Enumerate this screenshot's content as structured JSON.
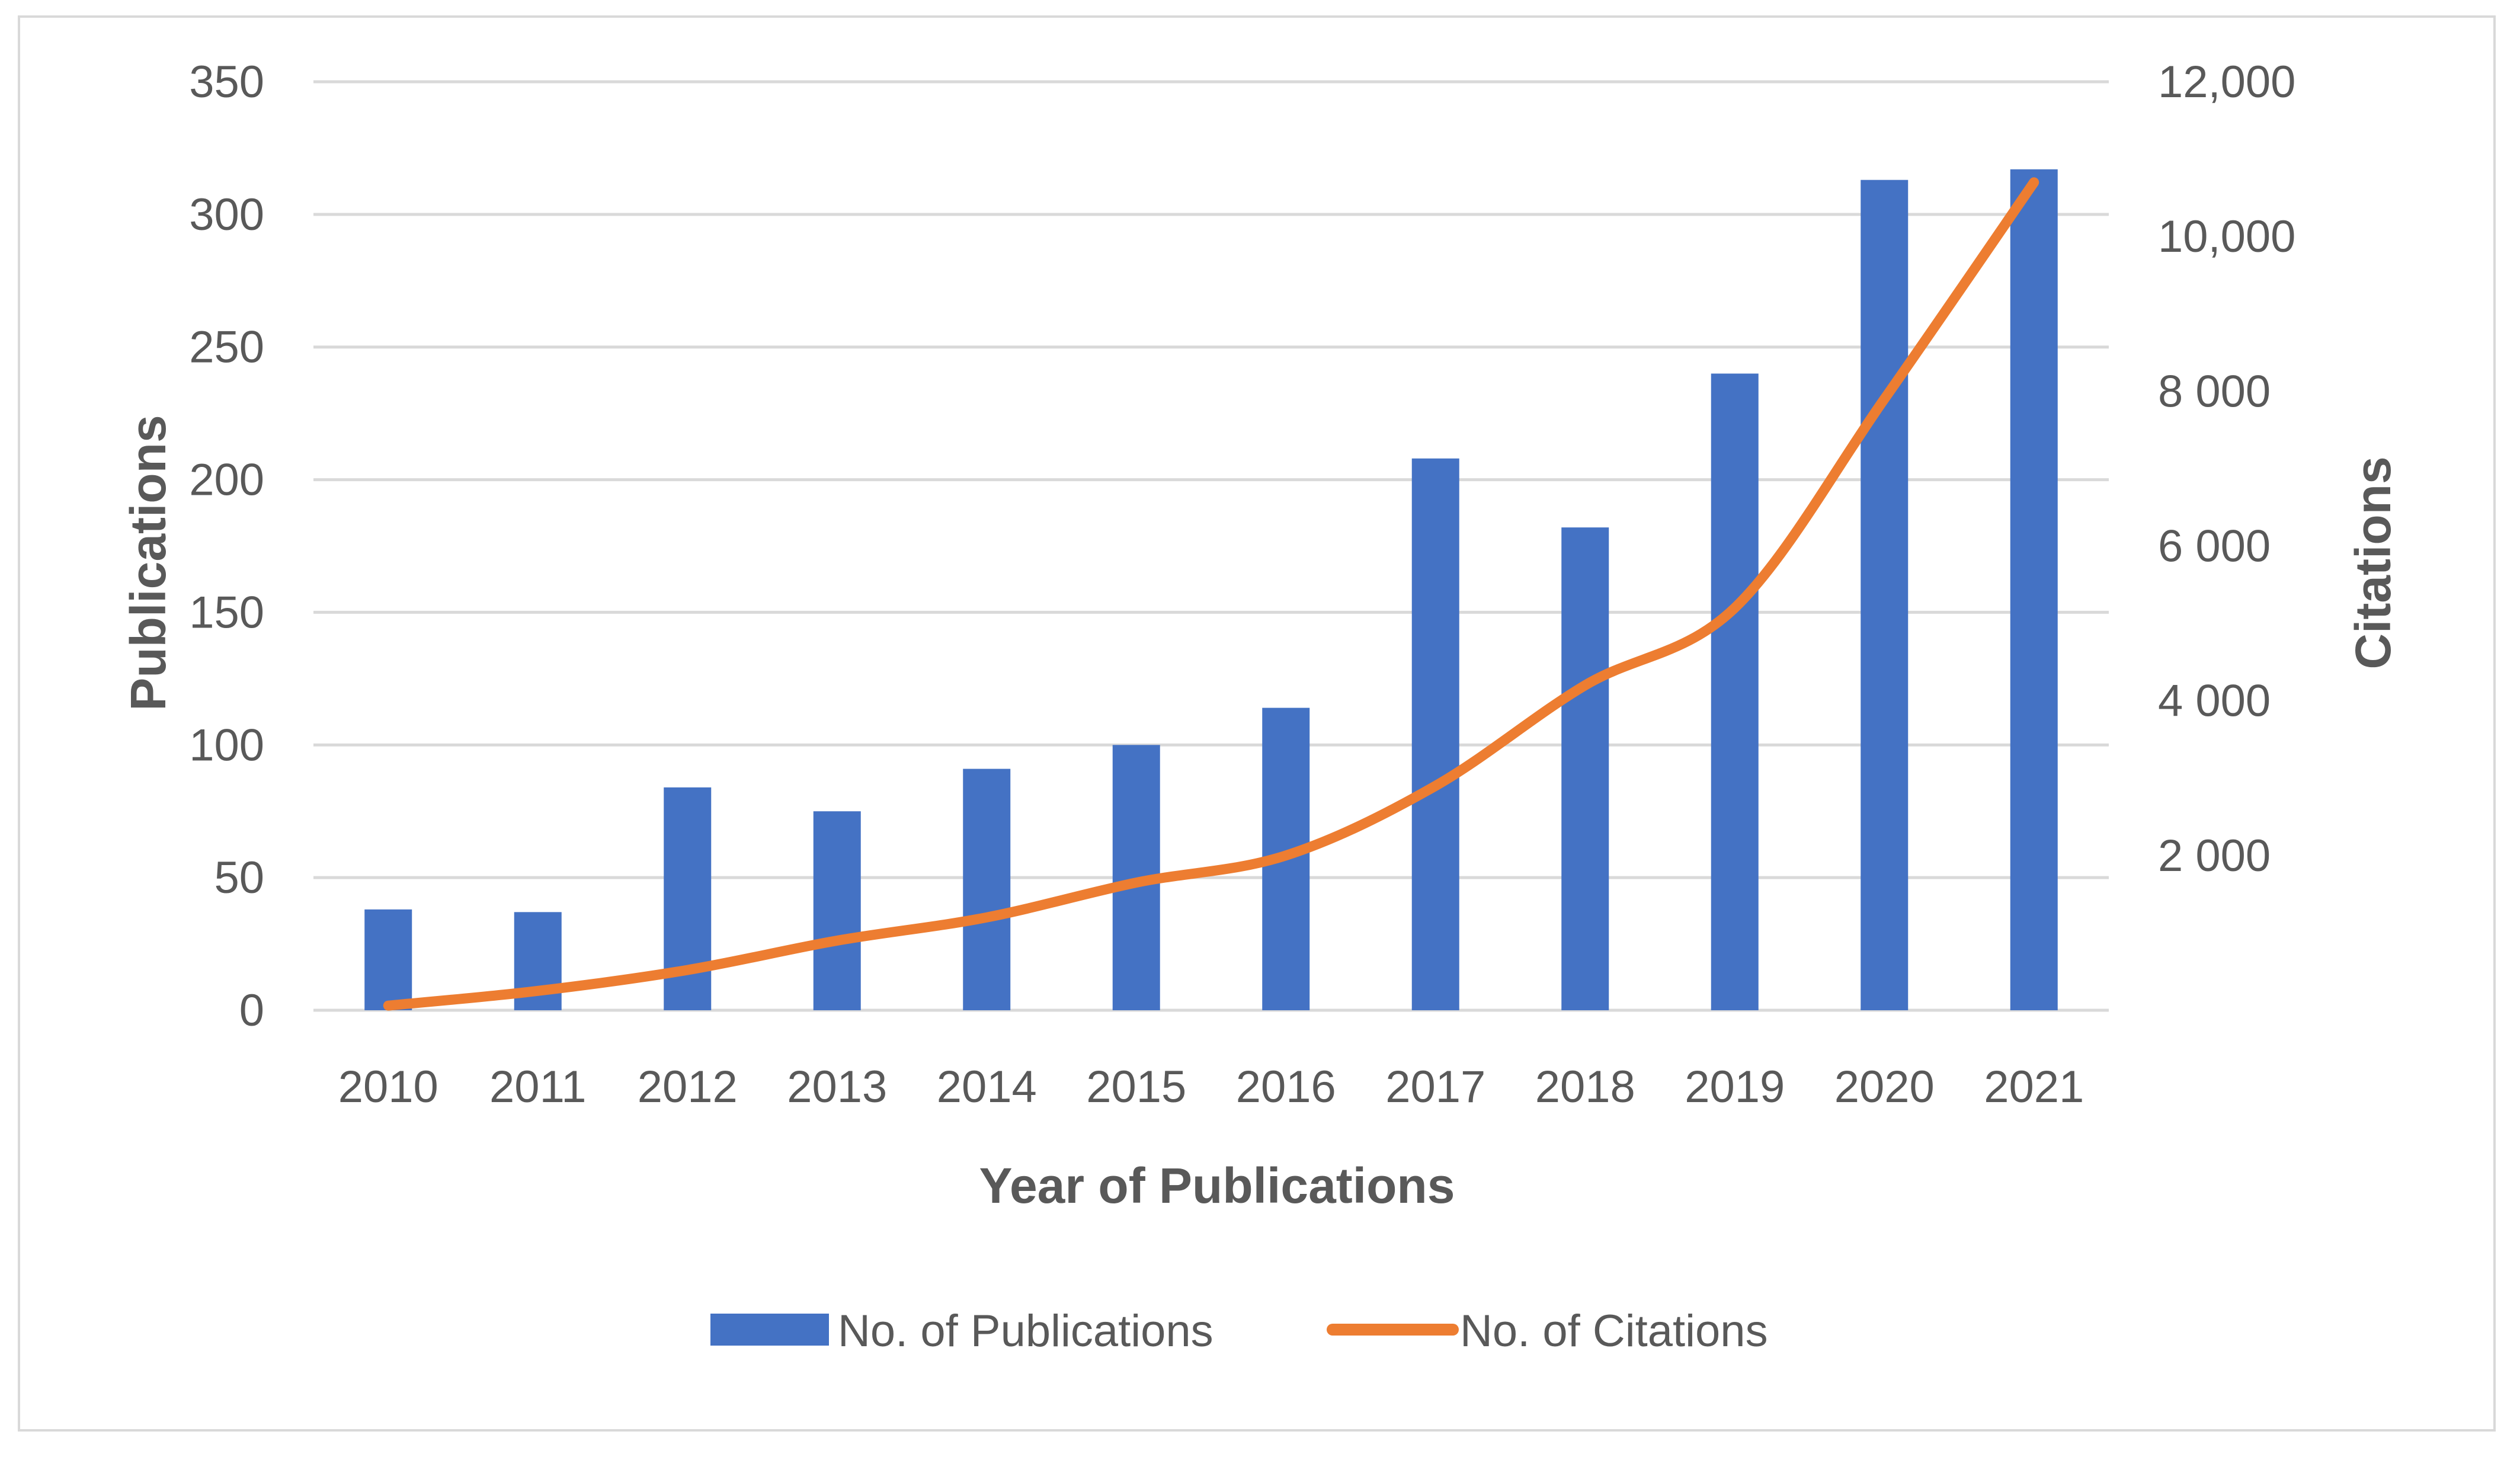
{
  "chart_data": {
    "type": "bar+line",
    "title": "",
    "xlabel": "Year of Publications",
    "ylabel": "Publications",
    "y2label": "Citations",
    "categories": [
      "2010",
      "2011",
      "2012",
      "2013",
      "2014",
      "2015",
      "2016",
      "2017",
      "2018",
      "2019",
      "2020",
      "2021"
    ],
    "ylim": [
      0,
      350
    ],
    "y2lim": [
      0,
      12000
    ],
    "y_ticks": [
      "0",
      "50",
      "100",
      "150",
      "200",
      "250",
      "300",
      "350"
    ],
    "y_tick_values": [
      0,
      50,
      100,
      150,
      200,
      250,
      300,
      350
    ],
    "y2_ticks": [
      "2 000",
      "4 000",
      "6 000",
      "8 000",
      "10,000",
      "12,000"
    ],
    "y2_tick_values": [
      2000,
      4000,
      6000,
      8000,
      10000,
      12000
    ],
    "grid": true,
    "legend_position": "bottom",
    "series": [
      {
        "name": "No. of Publications",
        "kind": "bar",
        "axis": "left",
        "color": "#4472c4",
        "values": [
          38,
          37,
          84,
          75,
          91,
          100,
          114,
          208,
          182,
          240,
          313,
          317
        ]
      },
      {
        "name": "No. of Citations",
        "kind": "line",
        "axis": "right",
        "color": "#ed7d31",
        "values": [
          60,
          250,
          520,
          900,
          1200,
          1650,
          2000,
          2900,
          4200,
          5200,
          7900,
          10700
        ]
      }
    ]
  }
}
